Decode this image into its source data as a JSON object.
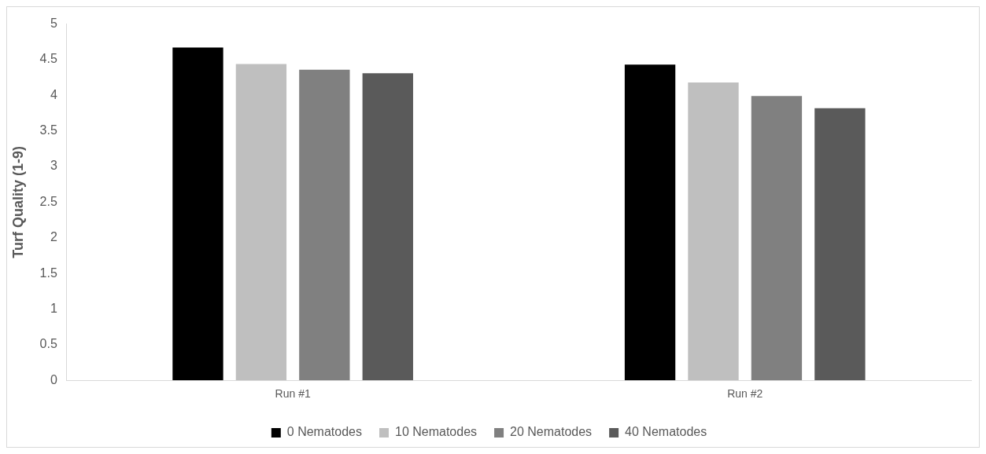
{
  "chart_data": {
    "type": "bar",
    "ylabel": "Turf Quality (1-9)",
    "categories": [
      "Run #1",
      "Run #2"
    ],
    "series": [
      {
        "name": "0 Nematodes",
        "color": "#000000",
        "values": [
          4.67,
          4.43
        ]
      },
      {
        "name": "10 Nematodes",
        "color": "#bfbfbf",
        "values": [
          4.44,
          4.18
        ]
      },
      {
        "name": "20 Nematodes",
        "color": "#808080",
        "values": [
          4.36,
          3.99
        ]
      },
      {
        "name": "40 Nematodes",
        "color": "#5a5a5a",
        "values": [
          4.31,
          3.82
        ]
      }
    ],
    "ylim": [
      0,
      5
    ],
    "yticks": [
      0,
      0.5,
      1,
      1.5,
      2,
      2.5,
      3,
      3.5,
      4,
      4.5,
      5
    ],
    "grid": false,
    "legend": "bottom"
  }
}
